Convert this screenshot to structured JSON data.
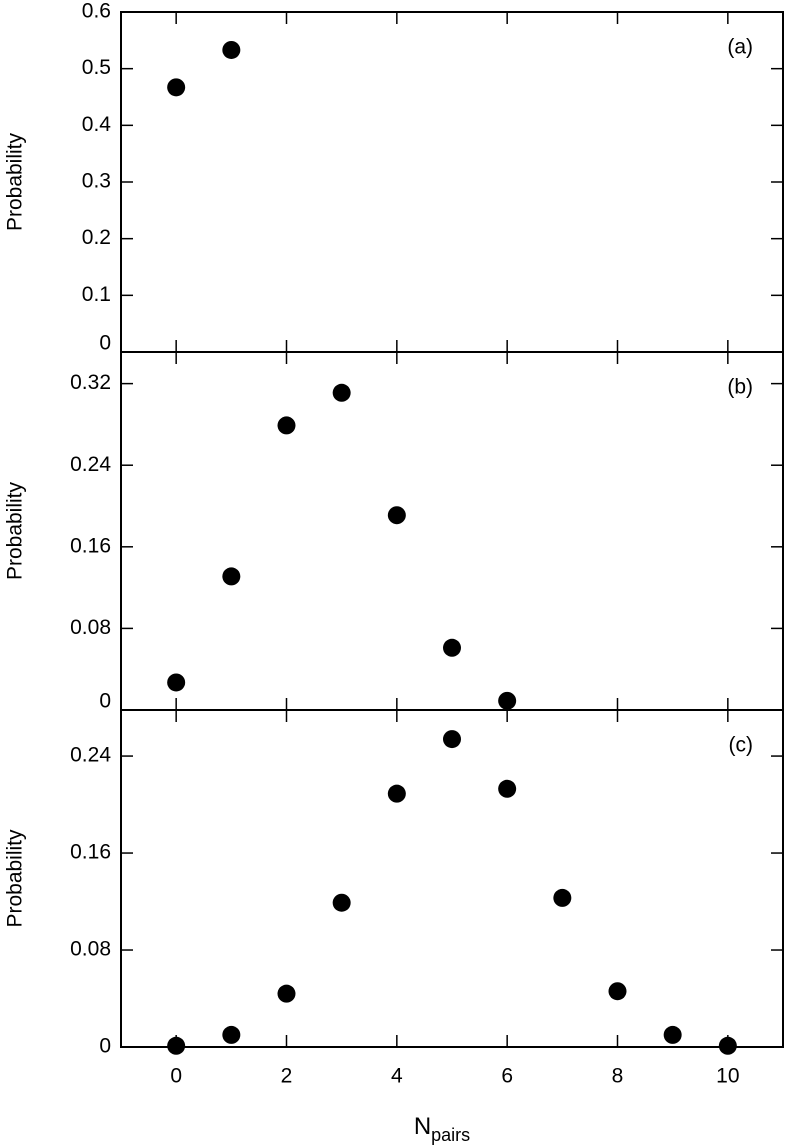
{
  "chart_data": [
    {
      "type": "scatter",
      "annotation": "(a)",
      "y_label": "Probability",
      "color": "#000000",
      "x": [
        0,
        1
      ],
      "values": [
        0.467,
        0.533
      ],
      "xlim": [
        -1,
        11
      ],
      "xticks": [
        0,
        2,
        4,
        6,
        8,
        10
      ],
      "ylim": [
        0,
        0.6
      ],
      "yticks": [
        0,
        0.1,
        0.2,
        0.3,
        0.4,
        0.5,
        0.6
      ]
    },
    {
      "type": "scatter",
      "annotation": "(b)",
      "y_label": "Probability",
      "color": "#000000",
      "x": [
        0,
        1,
        2,
        3,
        4,
        5,
        6
      ],
      "values": [
        0.027,
        0.131,
        0.279,
        0.311,
        0.191,
        0.061,
        0.009
      ],
      "xlim": [
        -1,
        11
      ],
      "xticks": [
        0,
        2,
        4,
        6,
        8,
        10
      ],
      "ylim": [
        0,
        0.351
      ],
      "yticks": [
        0,
        0.08,
        0.16,
        0.24,
        0.32
      ]
    },
    {
      "type": "scatter",
      "annotation": "(c)",
      "y_label": "Probability",
      "color": "#000000",
      "x": [
        0,
        1,
        2,
        3,
        4,
        5,
        6,
        7,
        8,
        9,
        10
      ],
      "values": [
        0.001,
        0.01,
        0.044,
        0.119,
        0.209,
        0.254,
        0.213,
        0.123,
        0.046,
        0.01,
        0.001
      ],
      "xlim": [
        -1,
        11
      ],
      "xticks": [
        0,
        2,
        4,
        6,
        8,
        10
      ],
      "ylim": [
        0,
        0.278
      ],
      "yticks": [
        0,
        0.08,
        0.16,
        0.24
      ],
      "x_label": "N",
      "x_label_subscript": "pairs"
    }
  ]
}
